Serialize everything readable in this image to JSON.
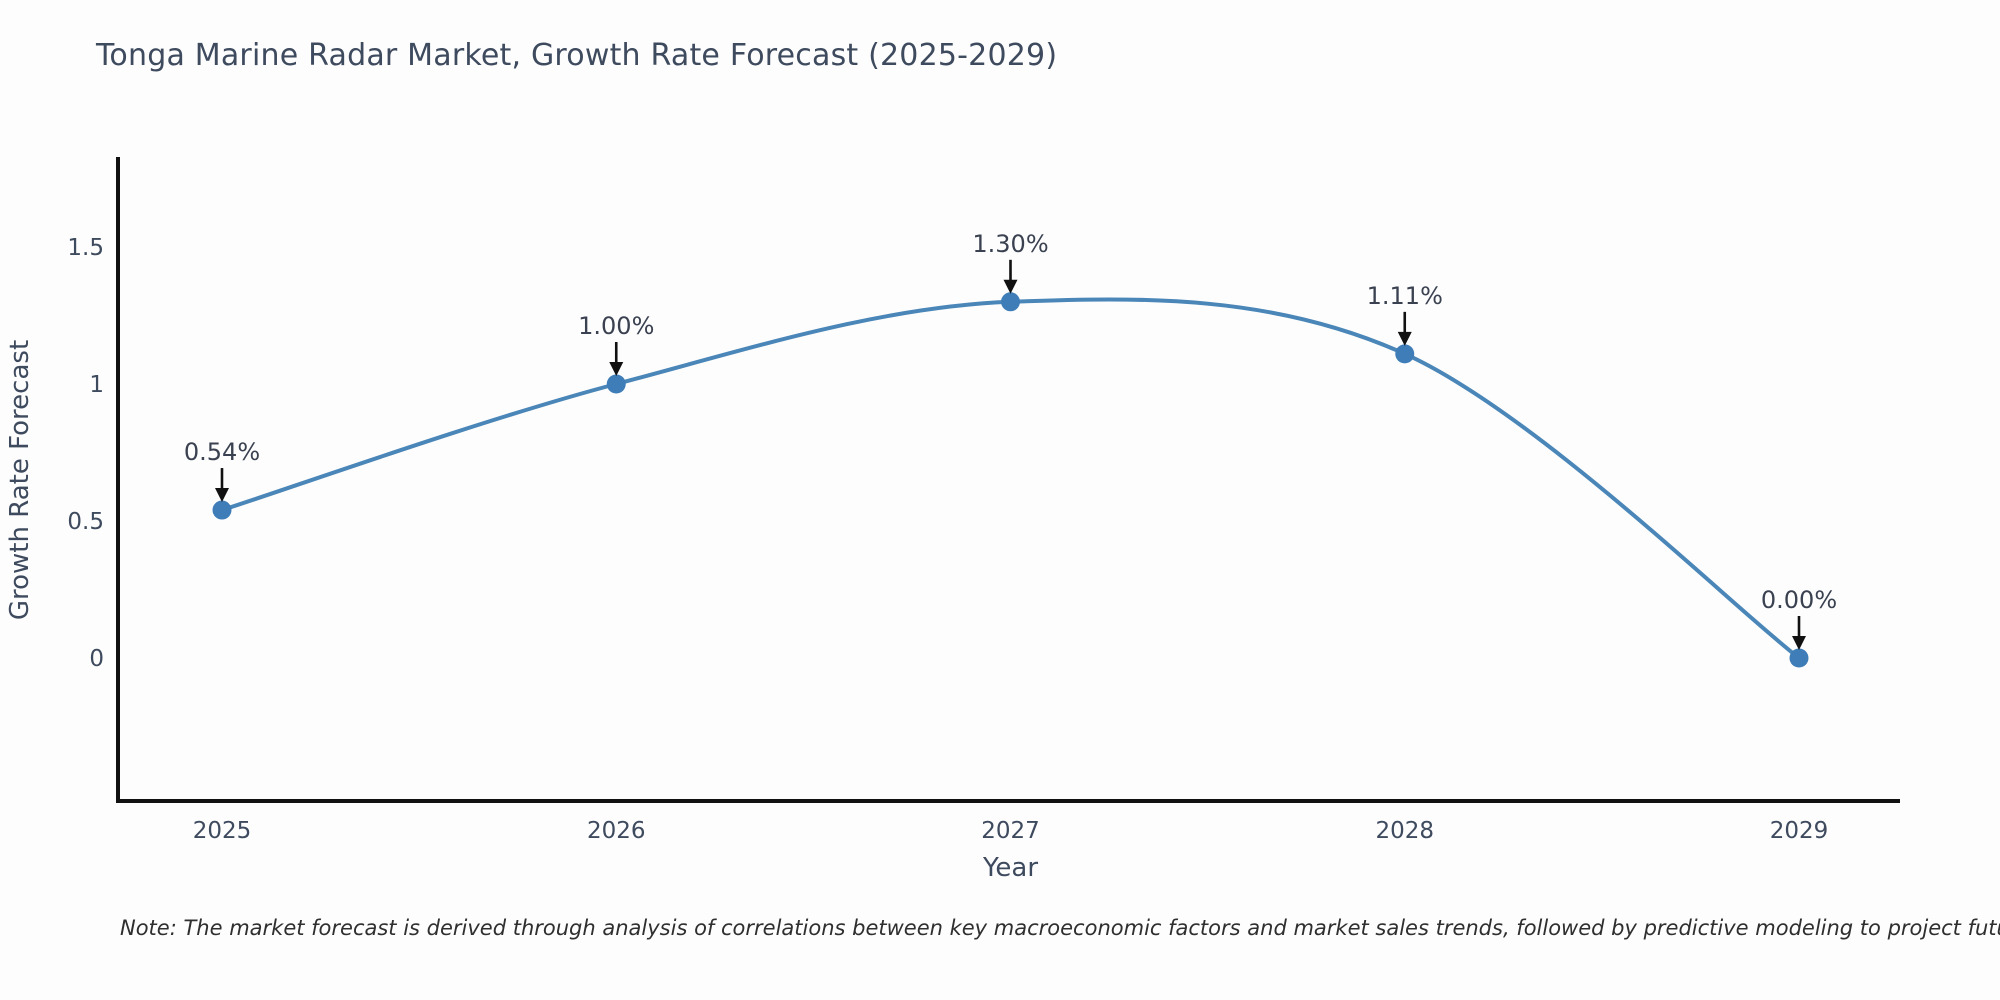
{
  "chart": {
    "title": "Tonga Marine Radar Market, Growth Rate Forecast (2025-2029)",
    "note": "Note: The market forecast is derived through analysis of correlations between key macroeconomic factors and market sales trends, followed by predictive modeling to project future sales",
    "colors": {
      "line": "#4a86b8",
      "marker": "#3e7db8",
      "axis": "#111111",
      "tick_text": "#3e4a5e",
      "axis_title_text": "#3e4a5e",
      "annotation_text": "#3a4150",
      "arrow": "#111111",
      "title_text": "#3e4a5e",
      "note_text": "#2f2f2f",
      "background": "#fdfdfd"
    }
  },
  "chart_data": {
    "type": "line",
    "title": "Tonga Marine Radar Market, Growth Rate Forecast (2025-2029)",
    "x": [
      2025,
      2026,
      2027,
      2028,
      2029
    ],
    "series": [
      {
        "name": "Growth Rate Forecast",
        "values": [
          0.54,
          1.0,
          1.3,
          1.11,
          0.0
        ]
      }
    ],
    "point_labels": [
      "0.54%",
      "1.00%",
      "1.30%",
      "1.11%",
      "0.00%"
    ],
    "xlabel": "Year",
    "ylabel": "Growth Rate Forecast",
    "xtick_labels": [
      "2025",
      "2026",
      "2027",
      "2028",
      "2029"
    ],
    "yticks": [
      0,
      0.5,
      1,
      1.5
    ],
    "ytick_labels": [
      "0",
      "0.5",
      "1",
      "1.5"
    ],
    "xlim": [
      2024.74,
      2029.26
    ],
    "ylim": [
      -0.52,
      1.82
    ],
    "grid": false,
    "legend_position": "none",
    "marker_style": "circle",
    "line_smoothing": "spline",
    "annotations_have_arrows": true
  }
}
